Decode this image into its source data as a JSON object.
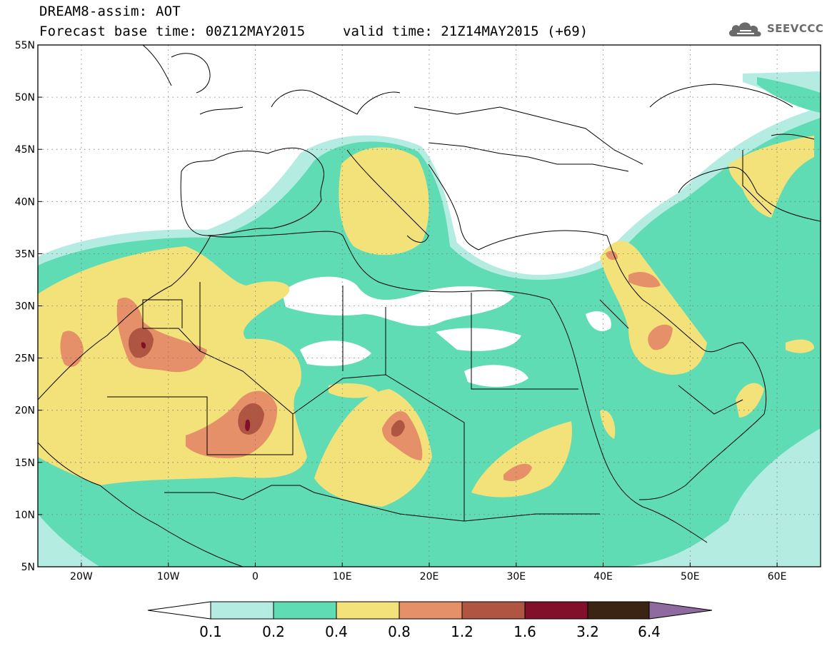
{
  "title": {
    "line1": "DREAM8-assim: AOT",
    "line2": "Forecast base time: 00Z12MAY2015",
    "valid": "valid time: 21Z14MAY2015 (+69)"
  },
  "logo": {
    "icon": "cloud-icon",
    "text": "SEEVCCC"
  },
  "map": {
    "lon_range": [
      -25,
      65
    ],
    "lat_range": [
      5,
      55
    ],
    "lat_ticks": [
      "5N",
      "10N",
      "15N",
      "20N",
      "25N",
      "30N",
      "35N",
      "40N",
      "45N",
      "50N",
      "55N"
    ],
    "lon_ticks": [
      "20W",
      "10W",
      "0",
      "10E",
      "20E",
      "30E",
      "40E",
      "50E",
      "60E"
    ],
    "grid": true
  },
  "colorbar": {
    "levels": [
      "0.1",
      "0.2",
      "0.4",
      "0.8",
      "1.2",
      "1.6",
      "3.2",
      "6.4"
    ],
    "colors": {
      "low_extension": "#ffffff",
      "c1": "#b4ece2",
      "c2": "#5fdcb4",
      "c3": "#f3e17a",
      "c4": "#e59068",
      "c5": "#b05542",
      "c6": "#82102a",
      "c7": "#3b2414",
      "high_extension": "#8e6aa0"
    }
  }
}
